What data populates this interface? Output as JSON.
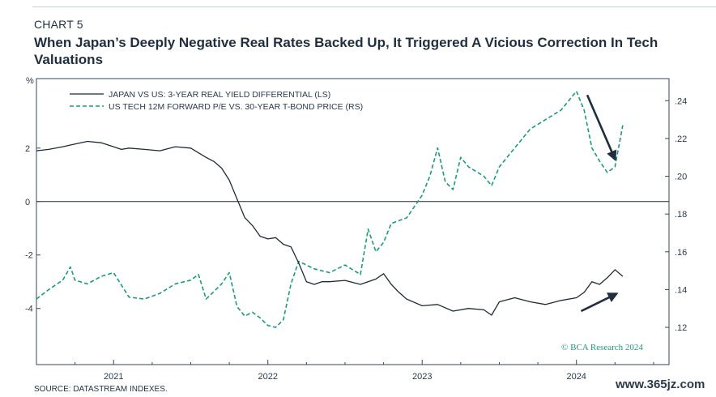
{
  "header": {
    "chart_number": "CHART 5",
    "title": "When Japan’s Deeply Negative Real Rates Backed Up, It Triggered A Vicious Correction In Tech Valuations"
  },
  "footer": {
    "source": "SOURCE: DATASTREAM INDEXES.",
    "watermark": "www.365jz.com"
  },
  "copyright": "© BCA Research 2024",
  "colors": {
    "series1": "#1f2a36",
    "series2": "#1a9b7b",
    "arrow": "#1f2f3f"
  },
  "chart_data": {
    "type": "line",
    "left_axis": {
      "unit_label": "%",
      "ylim": [
        -6.1,
        4.6
      ],
      "ticks": [
        "2",
        "0",
        "-2",
        "-4"
      ],
      "tick_values": [
        2,
        0,
        -2,
        -4
      ]
    },
    "right_axis": {
      "ylim": [
        0.1003,
        0.2517
      ],
      "ticks": [
        ".24",
        ".22",
        ".20",
        ".18",
        ".16",
        ".14",
        ".12"
      ],
      "tick_values": [
        0.24,
        0.22,
        0.2,
        0.18,
        0.16,
        0.14,
        0.12
      ]
    },
    "x_ticks": [
      "2021",
      "2022",
      "2023",
      "2024"
    ],
    "x_tick_values": [
      2021,
      2022,
      2023,
      2024
    ],
    "xlim": [
      2020.5,
      2024.6
    ],
    "zero_line": 0,
    "series": [
      {
        "name": "JAPAN VS US: 3-YEAR REAL YIELD DIFFERENTIAL (LS)",
        "axis": "left",
        "style": "solid",
        "x": [
          2020.5,
          2020.58,
          2020.67,
          2020.75,
          2020.83,
          2020.92,
          2021.0,
          2021.05,
          2021.1,
          2021.2,
          2021.3,
          2021.4,
          2021.5,
          2021.6,
          2021.65,
          2021.7,
          2021.75,
          2021.8,
          2021.85,
          2021.9,
          2021.95,
          2022.0,
          2022.05,
          2022.1,
          2022.15,
          2022.2,
          2022.25,
          2022.3,
          2022.35,
          2022.4,
          2022.5,
          2022.6,
          2022.7,
          2022.75,
          2022.8,
          2022.85,
          2022.9,
          2023.0,
          2023.1,
          2023.2,
          2023.3,
          2023.4,
          2023.45,
          2023.5,
          2023.6,
          2023.7,
          2023.8,
          2023.9,
          2024.0,
          2024.05,
          2024.1,
          2024.15,
          2024.2,
          2024.25,
          2024.3
        ],
        "values": [
          1.9,
          1.95,
          2.05,
          2.15,
          2.25,
          2.2,
          2.05,
          1.95,
          2.0,
          1.95,
          1.9,
          2.05,
          2.0,
          1.65,
          1.5,
          1.25,
          0.8,
          0.1,
          -0.6,
          -0.9,
          -1.3,
          -1.4,
          -1.35,
          -1.6,
          -1.7,
          -2.3,
          -3.0,
          -3.1,
          -3.0,
          -3.0,
          -2.95,
          -3.1,
          -2.9,
          -2.7,
          -3.1,
          -3.4,
          -3.65,
          -3.9,
          -3.85,
          -4.1,
          -4.0,
          -4.05,
          -4.25,
          -3.75,
          -3.6,
          -3.75,
          -3.85,
          -3.7,
          -3.6,
          -3.4,
          -3.0,
          -3.1,
          -2.85,
          -2.55,
          -2.8
        ]
      },
      {
        "name": "US TECH 12M FORWARD P/E VS. 30-YEAR T-BOND PRICE (RS)",
        "axis": "right",
        "style": "dashed",
        "x": [
          2020.5,
          2020.58,
          2020.67,
          2020.72,
          2020.75,
          2020.83,
          2020.92,
          2021.0,
          2021.1,
          2021.2,
          2021.3,
          2021.4,
          2021.5,
          2021.55,
          2021.6,
          2021.65,
          2021.7,
          2021.75,
          2021.8,
          2021.85,
          2021.9,
          2021.95,
          2022.0,
          2022.05,
          2022.1,
          2022.15,
          2022.2,
          2022.3,
          2022.4,
          2022.5,
          2022.6,
          2022.65,
          2022.7,
          2022.75,
          2022.8,
          2022.9,
          2023.0,
          2023.05,
          2023.1,
          2023.15,
          2023.2,
          2023.25,
          2023.3,
          2023.4,
          2023.45,
          2023.5,
          2023.6,
          2023.7,
          2023.8,
          2023.9,
          2024.0,
          2024.05,
          2024.1,
          2024.15,
          2024.2,
          2024.25,
          2024.3
        ],
        "values": [
          0.135,
          0.14,
          0.145,
          0.152,
          0.145,
          0.143,
          0.147,
          0.149,
          0.136,
          0.135,
          0.138,
          0.143,
          0.145,
          0.148,
          0.135,
          0.139,
          0.143,
          0.149,
          0.131,
          0.126,
          0.128,
          0.125,
          0.121,
          0.12,
          0.124,
          0.143,
          0.155,
          0.151,
          0.149,
          0.153,
          0.148,
          0.172,
          0.16,
          0.165,
          0.175,
          0.178,
          0.19,
          0.2,
          0.215,
          0.197,
          0.193,
          0.21,
          0.205,
          0.2,
          0.195,
          0.205,
          0.215,
          0.225,
          0.23,
          0.235,
          0.245,
          0.235,
          0.215,
          0.208,
          0.202,
          0.205,
          0.227
        ]
      }
    ],
    "annotations": [
      {
        "kind": "arrow",
        "from": {
          "x": 2024.07,
          "axis": "right",
          "value": 0.243
        },
        "to": {
          "x": 2024.25,
          "axis": "right",
          "value": 0.209
        }
      },
      {
        "kind": "arrow",
        "from": {
          "x": 2024.03,
          "axis": "left",
          "value": -4.1
        },
        "to": {
          "x": 2024.26,
          "axis": "left",
          "value": -3.45
        }
      }
    ]
  }
}
